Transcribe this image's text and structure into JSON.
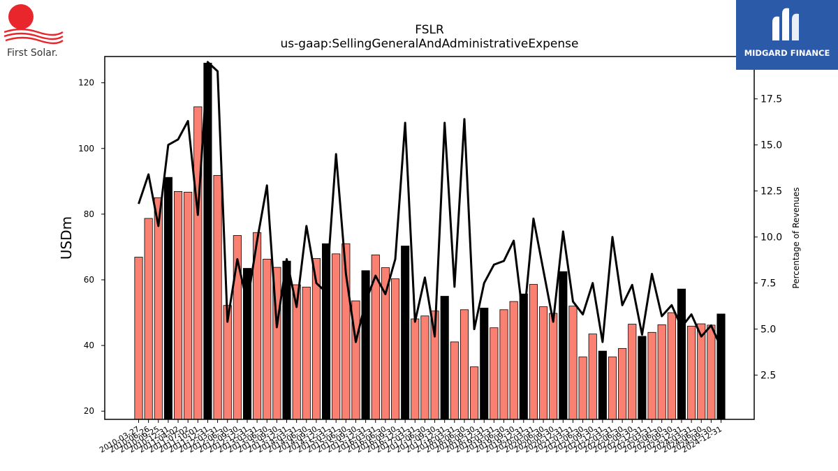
{
  "logos": {
    "left_name": "First Solar.",
    "right_name": "MIDGARD FINANCE"
  },
  "chart_data": {
    "type": "bar",
    "title": "FSLR",
    "subtitle": "us-gaap:SellingGeneralAndAdministrativeExpense",
    "ylabel": "USDm",
    "y2label": "Percentage of Revenues",
    "ylim": [
      17.5,
      128
    ],
    "y2lim": [
      0.1,
      19.8
    ],
    "yticks": [
      20,
      40,
      60,
      80,
      100,
      120
    ],
    "y2ticks": [
      2.5,
      5.0,
      7.5,
      10.0,
      12.5,
      15.0,
      17.5
    ],
    "grid": false,
    "colors": {
      "bar": "#fa8072",
      "bar_annual": "#000000",
      "line": "#000000"
    },
    "categories": [
      "2010-03-27",
      "2010-06-26",
      "2010-09-25",
      "2010-12-31",
      "2011-04-02",
      "2011-07-02",
      "2011-10-01",
      "2011-12-31",
      "2012-03-31",
      "2012-06-30",
      "2012-09-30",
      "2012-12-31",
      "2013-03-31",
      "2013-06-30",
      "2013-09-30",
      "2013-12-31",
      "2014-03-31",
      "2014-06-30",
      "2014-09-30",
      "2014-12-31",
      "2015-03-31",
      "2015-06-30",
      "2015-09-30",
      "2015-12-31",
      "2016-03-31",
      "2016-06-30",
      "2016-09-30",
      "2016-12-31",
      "2017-03-31",
      "2017-06-30",
      "2017-09-30",
      "2017-12-31",
      "2018-03-31",
      "2018-06-30",
      "2018-09-30",
      "2018-12-31",
      "2019-03-31",
      "2019-06-30",
      "2019-09-30",
      "2019-12-31",
      "2020-03-31",
      "2020-06-30",
      "2020-09-30",
      "2020-12-31",
      "2021-03-31",
      "2021-06-30",
      "2021-09-30",
      "2021-12-31",
      "2022-03-31",
      "2022-06-30",
      "2022-09-30",
      "2022-12-31",
      "2023-03-31",
      "2023-06-30",
      "2023-09-30",
      "2023-12-31",
      "2024-03-31",
      "2024-06-30",
      "2024-09-30",
      "2024-12-31"
    ],
    "series": [
      {
        "kind": "bar",
        "values": [
          66.9,
          78.7,
          85.0,
          91.2,
          86.9,
          86.7,
          112.7,
          126.0,
          91.8,
          52.2,
          73.5,
          63.5,
          74.4,
          66.3,
          63.8,
          65.7,
          58.5,
          57.8,
          66.5,
          71.0,
          67.9,
          71.0,
          53.6,
          62.8,
          67.6,
          63.7,
          60.3,
          70.3,
          48.1,
          49.0,
          50.5,
          55.0,
          41.1,
          50.9,
          33.5,
          51.4,
          45.4,
          50.9,
          53.4,
          55.7,
          58.6,
          51.8,
          49.8,
          62.5,
          52.0,
          36.5,
          43.5,
          38.3,
          36.5,
          39.1,
          46.5,
          42.8,
          44.0,
          46.3,
          50.0,
          57.2,
          45.9,
          46.6,
          46.2,
          49.6
        ],
        "annual": [
          false,
          false,
          false,
          true,
          false,
          false,
          false,
          true,
          false,
          false,
          false,
          true,
          false,
          false,
          false,
          true,
          false,
          false,
          false,
          true,
          false,
          false,
          false,
          true,
          false,
          false,
          false,
          true,
          false,
          false,
          false,
          true,
          false,
          false,
          false,
          true,
          false,
          false,
          false,
          true,
          false,
          false,
          false,
          true,
          false,
          false,
          false,
          true,
          false,
          false,
          false,
          true,
          false,
          false,
          false,
          true,
          false,
          false,
          false,
          true
        ]
      },
      {
        "kind": "line",
        "axis": "right",
        "values": [
          11.8,
          13.4,
          10.6,
          15.0,
          15.3,
          16.3,
          11.2,
          19.5,
          19.0,
          5.4,
          8.8,
          6.4,
          9.8,
          12.8,
          5.1,
          8.8,
          6.2,
          10.6,
          7.5,
          7.0,
          14.5,
          8.0,
          4.3,
          6.5,
          7.9,
          6.9,
          8.8,
          16.2,
          5.4,
          7.8,
          4.6,
          16.2,
          7.3,
          16.4,
          5.0,
          7.5,
          8.5,
          8.7,
          9.8,
          5.4,
          11.0,
          8.2,
          5.4,
          10.3,
          6.5,
          5.8,
          7.5,
          4.3,
          10.0,
          6.3,
          7.4,
          4.7,
          8.0,
          5.7,
          6.3,
          5.1,
          5.8,
          4.6,
          5.2,
          4.0
        ]
      }
    ]
  }
}
